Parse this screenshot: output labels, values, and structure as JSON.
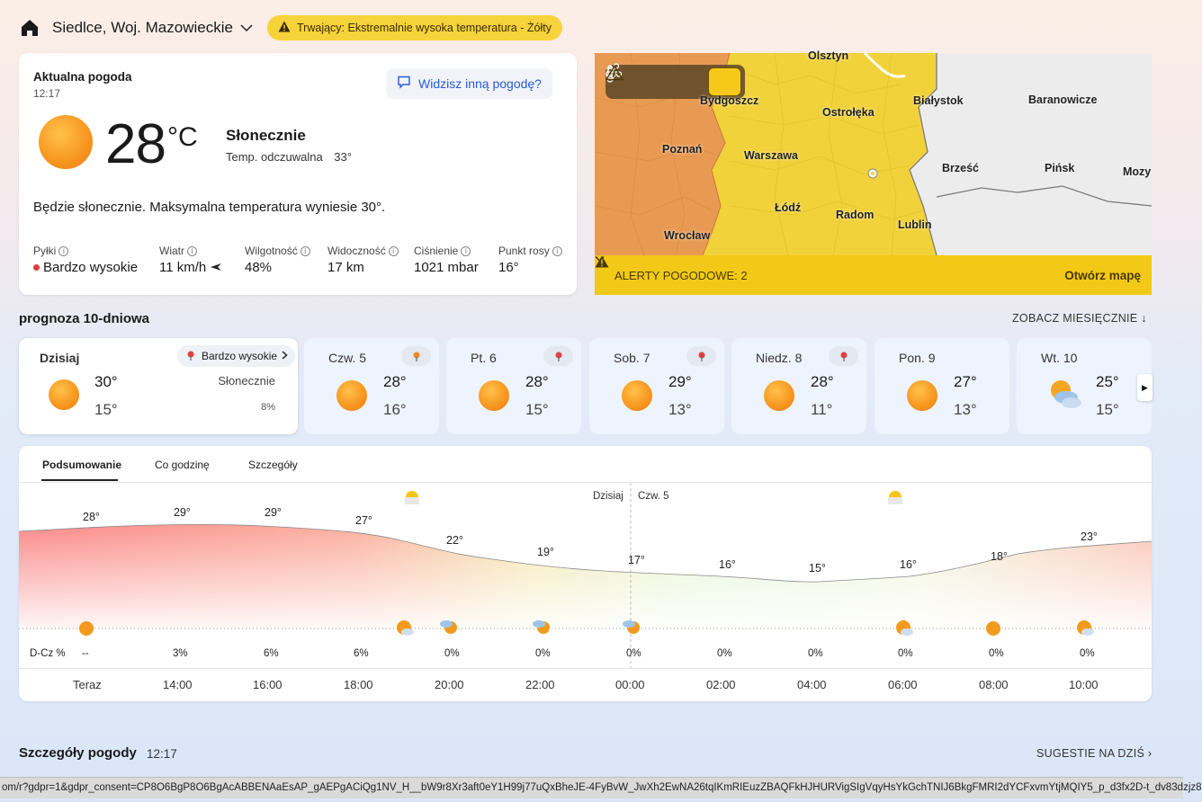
{
  "header": {
    "location": "Siedlce, Woj. Mazowieckie",
    "alert_text": "Trwający: Ekstremalnie wysoka temperatura - Żółty"
  },
  "current": {
    "title": "Aktualna pogoda",
    "time": "12:17",
    "feedback_label": "Widzisz inną pogodę?",
    "temp": "28",
    "unit": "°C",
    "condition": "Słonecznie",
    "feels_label": "Temp. odczuwalna",
    "feels_value": "33°",
    "summary": "Będzie słonecznie. Maksymalna temperatura wyniesie 30°.",
    "stats": [
      {
        "label": "Pyłki",
        "value": "Bardzo wysokie"
      },
      {
        "label": "Wiatr",
        "value": "11 km/h"
      },
      {
        "label": "Wilgotność",
        "value": "48%"
      },
      {
        "label": "Widoczność",
        "value": "17 km"
      },
      {
        "label": "Ciśnienie",
        "value": "1021 mbar"
      },
      {
        "label": "Punkt rosy",
        "value": "16°"
      }
    ]
  },
  "map": {
    "cities": [
      "Olsztyn",
      "Bydgoszcz",
      "Ostrołęka",
      "Białystok",
      "Baranowicze",
      "Poznań",
      "Warszawa",
      "Brześć",
      "Pińsk",
      "Mozy",
      "Łódź",
      "Radom",
      "Lublin",
      "Wrocław"
    ],
    "alerts_label": "ALERTY POGODOWE: 2",
    "open_label": "Otwórz mapę"
  },
  "forecast": {
    "title": "prognoza 10-dniowa",
    "month_link": "ZOBACZ MIESIĘCZNIE",
    "today": {
      "name": "Dzisiaj",
      "pollen": "Bardzo wysokie",
      "hi": "30°",
      "lo": "15°",
      "condition": "Słonecznie",
      "precip": "8%"
    },
    "days": [
      {
        "name": "Czw. 5",
        "hi": "28°",
        "lo": "16°"
      },
      {
        "name": "Pt. 6",
        "hi": "28°",
        "lo": "15°"
      },
      {
        "name": "Sob. 7",
        "hi": "29°",
        "lo": "13°"
      },
      {
        "name": "Niedz. 8",
        "hi": "28°",
        "lo": "11°"
      },
      {
        "name": "Pon. 9",
        "hi": "27°",
        "lo": "13°"
      },
      {
        "name": "Wt. 10",
        "hi": "25°",
        "lo": "15°"
      }
    ]
  },
  "hourly": {
    "tabs": [
      "Podsumowanie",
      "Co godzinę",
      "Szczegóły"
    ],
    "day_labels": [
      "Dzisiaj",
      "Czw. 5"
    ],
    "precip_label": "D-Cz %",
    "temps": [
      "28°",
      "29°",
      "29°",
      "27°",
      "22°",
      "19°",
      "17°",
      "16°",
      "15°",
      "16°",
      "18°",
      "23°"
    ],
    "precip": [
      "--",
      "3%",
      "6%",
      "6%",
      "0%",
      "0%",
      "0%",
      "0%",
      "0%",
      "0%",
      "0%",
      "0%"
    ],
    "hours": [
      "Teraz",
      "14:00",
      "16:00",
      "18:00",
      "20:00",
      "22:00",
      "00:00",
      "02:00",
      "04:00",
      "06:00",
      "08:00",
      "10:00"
    ]
  },
  "details": {
    "title": "Szczegóły pogody",
    "time": "12:17",
    "suggest_label": "SUGESTIE NA DZIŚ"
  },
  "statusbar": {
    "url": "om/r?gdpr=1&gdpr_consent=CP8O6BgP8O6BgAcABBENAaEsAP_gAEPgACiQg1NV_H__bW9r8Xr3aft0eY1H99j77uQxBheJE-4FyBvW_JwXh2EwNA26tqIKmRIEuzZBAQFkHJHURVigSIgVqyHsYkGchTNIJ6BkgFMRI2dYCFxvmYtjMQIY5_p_d3fx2D-t_dv83dzjz8"
  }
}
